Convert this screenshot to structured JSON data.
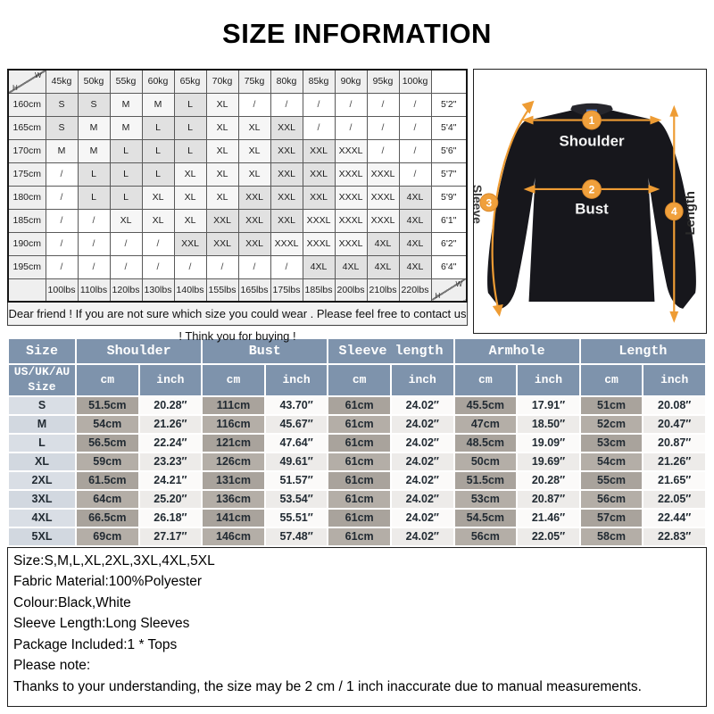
{
  "title": "SIZE INFORMATION",
  "colors": {
    "accent_orange": "#ee9c34",
    "header_blue": "#7e93ac",
    "cm_cell_gray": "#a9a39c",
    "matrix_shaded": "#e1e1e1"
  },
  "matrix": {
    "corner": {
      "top": "W",
      "bottom": "H"
    },
    "weights": [
      "45kg",
      "50kg",
      "55kg",
      "60kg",
      "65kg",
      "70kg",
      "75kg",
      "80kg",
      "85kg",
      "90kg",
      "95kg",
      "100kg"
    ],
    "weights_lbs": [
      "100lbs",
      "110lbs",
      "120lbs",
      "130lbs",
      "140lbs",
      "155lbs",
      "165lbs",
      "175lbs",
      "185lbs",
      "200lbs",
      "210lbs",
      "220lbs"
    ],
    "rows": [
      {
        "height": "160cm",
        "feet": "5'2\"",
        "cells": [
          "S",
          "S",
          "M",
          "M",
          "L",
          "XL",
          "/",
          "/",
          "/",
          "/",
          "/",
          "/"
        ]
      },
      {
        "height": "165cm",
        "feet": "5'4\"",
        "cells": [
          "S",
          "M",
          "M",
          "L",
          "L",
          "XL",
          "XL",
          "XXL",
          "/",
          "/",
          "/",
          "/"
        ]
      },
      {
        "height": "170cm",
        "feet": "5'6\"",
        "cells": [
          "M",
          "M",
          "L",
          "L",
          "L",
          "XL",
          "XL",
          "XXL",
          "XXL",
          "XXXL",
          "/",
          "/"
        ]
      },
      {
        "height": "175cm",
        "feet": "5'7\"",
        "cells": [
          "/",
          "L",
          "L",
          "L",
          "XL",
          "XL",
          "XL",
          "XXL",
          "XXL",
          "XXXL",
          "XXXL",
          "/"
        ]
      },
      {
        "height": "180cm",
        "feet": "5'9\"",
        "cells": [
          "/",
          "L",
          "L",
          "XL",
          "XL",
          "XL",
          "XXL",
          "XXL",
          "XXL",
          "XXXL",
          "XXXL",
          "4XL"
        ]
      },
      {
        "height": "185cm",
        "feet": "6'1\"",
        "cells": [
          "/",
          "/",
          "XL",
          "XL",
          "XL",
          "XXL",
          "XXL",
          "XXL",
          "XXXL",
          "XXXL",
          "XXXL",
          "4XL"
        ]
      },
      {
        "height": "190cm",
        "feet": "6'2\"",
        "cells": [
          "/",
          "/",
          "/",
          "/",
          "XXL",
          "XXL",
          "XXL",
          "XXXL",
          "XXXL",
          "XXXL",
          "4XL",
          "4XL"
        ]
      },
      {
        "height": "195cm",
        "feet": "6'4\"",
        "cells": [
          "/",
          "/",
          "/",
          "/",
          "/",
          "/",
          "/",
          "/",
          "4XL",
          "4XL",
          "4XL",
          "4XL"
        ]
      }
    ],
    "note": "Dear friend ! If you are not sure which size you could wear . Please feel free to contact us ! Think you for buying !"
  },
  "diagram": {
    "measures": [
      {
        "num": "1",
        "label": "Shoulder"
      },
      {
        "num": "2",
        "label": "Bust"
      },
      {
        "num": "3",
        "label": "Sleeve"
      },
      {
        "num": "4",
        "label": "Length"
      }
    ]
  },
  "size_table": {
    "col_headers": [
      "Size",
      "Shoulder",
      "Bust",
      "Sleeve length",
      "Armhole",
      "Length"
    ],
    "sub_headers": {
      "size": "US/UK/AU\nSize",
      "cm": "cm",
      "inch": "inch"
    },
    "rows": [
      {
        "size": "S",
        "shoulder": [
          "51.5cm",
          "20.28″"
        ],
        "bust": [
          "111cm",
          "43.70″"
        ],
        "sleeve": [
          "61cm",
          "24.02″"
        ],
        "armhole": [
          "45.5cm",
          "17.91″"
        ],
        "length": [
          "51cm",
          "20.08″"
        ]
      },
      {
        "size": "M",
        "shoulder": [
          "54cm",
          "21.26″"
        ],
        "bust": [
          "116cm",
          "45.67″"
        ],
        "sleeve": [
          "61cm",
          "24.02″"
        ],
        "armhole": [
          "47cm",
          "18.50″"
        ],
        "length": [
          "52cm",
          "20.47″"
        ]
      },
      {
        "size": "L",
        "shoulder": [
          "56.5cm",
          "22.24″"
        ],
        "bust": [
          "121cm",
          "47.64″"
        ],
        "sleeve": [
          "61cm",
          "24.02″"
        ],
        "armhole": [
          "48.5cm",
          "19.09″"
        ],
        "length": [
          "53cm",
          "20.87″"
        ]
      },
      {
        "size": "XL",
        "shoulder": [
          "59cm",
          "23.23″"
        ],
        "bust": [
          "126cm",
          "49.61″"
        ],
        "sleeve": [
          "61cm",
          "24.02″"
        ],
        "armhole": [
          "50cm",
          "19.69″"
        ],
        "length": [
          "54cm",
          "21.26″"
        ]
      },
      {
        "size": "2XL",
        "shoulder": [
          "61.5cm",
          "24.21″"
        ],
        "bust": [
          "131cm",
          "51.57″"
        ],
        "sleeve": [
          "61cm",
          "24.02″"
        ],
        "armhole": [
          "51.5cm",
          "20.28″"
        ],
        "length": [
          "55cm",
          "21.65″"
        ]
      },
      {
        "size": "3XL",
        "shoulder": [
          "64cm",
          "25.20″"
        ],
        "bust": [
          "136cm",
          "53.54″"
        ],
        "sleeve": [
          "61cm",
          "24.02″"
        ],
        "armhole": [
          "53cm",
          "20.87″"
        ],
        "length": [
          "56cm",
          "22.05″"
        ]
      },
      {
        "size": "4XL",
        "shoulder": [
          "66.5cm",
          "26.18″"
        ],
        "bust": [
          "141cm",
          "55.51″"
        ],
        "sleeve": [
          "61cm",
          "24.02″"
        ],
        "armhole": [
          "54.5cm",
          "21.46″"
        ],
        "length": [
          "57cm",
          "22.44″"
        ]
      },
      {
        "size": "5XL",
        "shoulder": [
          "69cm",
          "27.17″"
        ],
        "bust": [
          "146cm",
          "57.48″"
        ],
        "sleeve": [
          "61cm",
          "24.02″"
        ],
        "armhole": [
          "56cm",
          "22.05″"
        ],
        "length": [
          "58cm",
          "22.83″"
        ]
      }
    ]
  },
  "product_info": [
    "Size:S,M,L,XL,2XL,3XL,4XL,5XL",
    "Fabric Material:100%Polyester",
    "Colour:Black,White",
    "Sleeve Length:Long Sleeves",
    "Package Included:1 * Tops",
    "Please note:",
    "Thanks to your understanding, the size may be 2 cm / 1 inch inaccurate due to manual measurements."
  ]
}
